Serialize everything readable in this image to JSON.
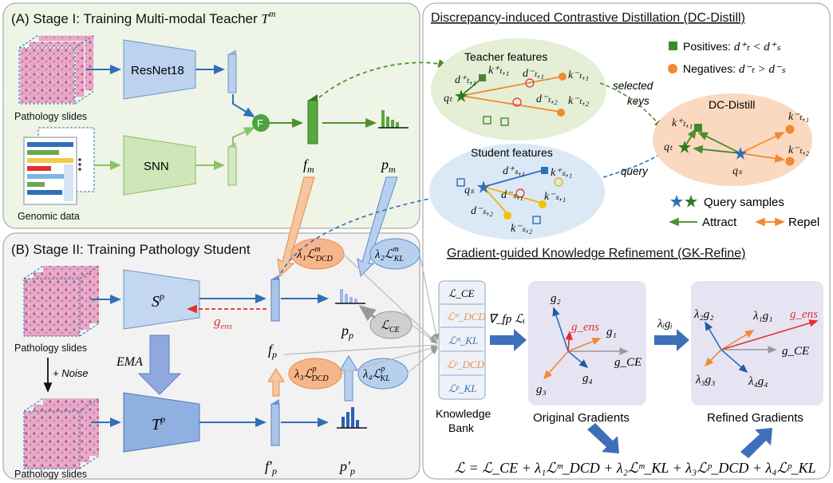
{
  "stage1": {
    "title": "(A) Stage I: Training Multi-modal Teacher",
    "title_math": "T",
    "title_sup": "m"
  },
  "stage2": {
    "title": "(B) Stage II: Training Pathology Student"
  },
  "inputs": {
    "pathology": "Pathology slides",
    "genomic": "Genomic data",
    "noise": "+ Noise",
    "ema": "EMA"
  },
  "networks": {
    "resnet": "ResNet18",
    "snn": "SNN",
    "fusion": "F",
    "student": "S",
    "teacher": "T",
    "net_sup": "p"
  },
  "features": {
    "f_m": "f",
    "f_m_sub": "m",
    "p_m": "p",
    "p_m_sub": "m",
    "f_p": "f",
    "f_p_sub": "p",
    "p_p": "p",
    "p_p_sub": "p",
    "f_p_prime": "f′",
    "p_p_prime": "p′",
    "g_ens": "g",
    "g_ens_sub": "ens"
  },
  "loss_ovals": {
    "l1": "λ₁ℒ",
    "l1_sup": "m",
    "l1_sub": "DCD",
    "l2": "λ₂ℒ",
    "l2_sup": "m",
    "l2_sub": "KL",
    "l3": "λ₃ℒ",
    "l3_sup": "p",
    "l3_sub": "DCD",
    "l4": "λ₄ℒ",
    "l4_sup": "p",
    "l4_sub": "KL",
    "ce": "ℒ",
    "ce_sub": "CE"
  },
  "dc_distill": {
    "title": "Discrepancy-induced Contrastive Distillation (DC-Distill)",
    "teacher_features": "Teacher features",
    "student_features": "Student features",
    "selected_keys_1": "selected",
    "selected_keys_2": "keys",
    "query": "query",
    "box_title": "DC-Distill",
    "positives_label": "Positives:",
    "positives_rule": "d⁺ₜ < d⁺ₛ",
    "negatives_label": "Negatives:",
    "negatives_rule": "d⁻ₜ > d⁻ₛ",
    "query_samples": "Query samples",
    "attract": "Attract",
    "repel": "Repel",
    "teacher_labels": [
      "k⁺ₜ,₁",
      "d⁺ₜ,₁",
      "d⁻ₜ,₁",
      "k⁻ₜ,₁",
      "d⁻ₜ,₂",
      "k⁻ₜ,₂",
      "qₜ"
    ],
    "student_labels": [
      "d⁺ₛ,₁",
      "k⁺ₛ,₁",
      "d⁻ₛ,₁",
      "k⁻ₛ,₁",
      "d⁻ₛ,₂",
      "k⁻ₛ,₂",
      "qₛ"
    ],
    "box_labels": [
      "k⁺ₜ,₁",
      "k⁻ₜ,₁",
      "qₜ",
      "k⁻ₜ,₂",
      "qₛ"
    ]
  },
  "gk_refine": {
    "title": "Gradient-guided Knowledge Refinement (GK-Refine)",
    "bank_items": [
      "ℒ_CE",
      "ℒᵐ_DCD",
      "ℒᵐ_KL",
      "ℒᵖ_DCD",
      "ℒᵖ_KL"
    ],
    "bank_label_1": "Knowledge",
    "bank_label_2": "Bank",
    "grad_label": "∇_fp ℒᵢ",
    "scale_label": "λᵢgᵢ",
    "original": "Original Gradients",
    "refined": "Refined Gradients",
    "orig_vectors": [
      "g₂",
      "g_ens",
      "g₁",
      "g_CE",
      "g₄",
      "g₃"
    ],
    "refined_vectors": [
      "λ₂g₂",
      "λ₁g₁",
      "g_ens",
      "g_CE",
      "λ₃g₃",
      "λ₄g₄"
    ],
    "equation": "ℒ = ℒ_CE + λ₁ℒᵐ_DCD + λ₂ℒᵐ_KL + λ₃ℒᵖ_DCD + λ₄ℒᵖ_KL"
  },
  "colors": {
    "stage1_bg": "#eef4e6",
    "stage2_bg": "#f2f2f2",
    "blue": "#2e6fb8",
    "green": "#4f8f2f",
    "orange": "#f08a30",
    "red": "#e03030",
    "purple_bg": "#e6e4f2"
  }
}
